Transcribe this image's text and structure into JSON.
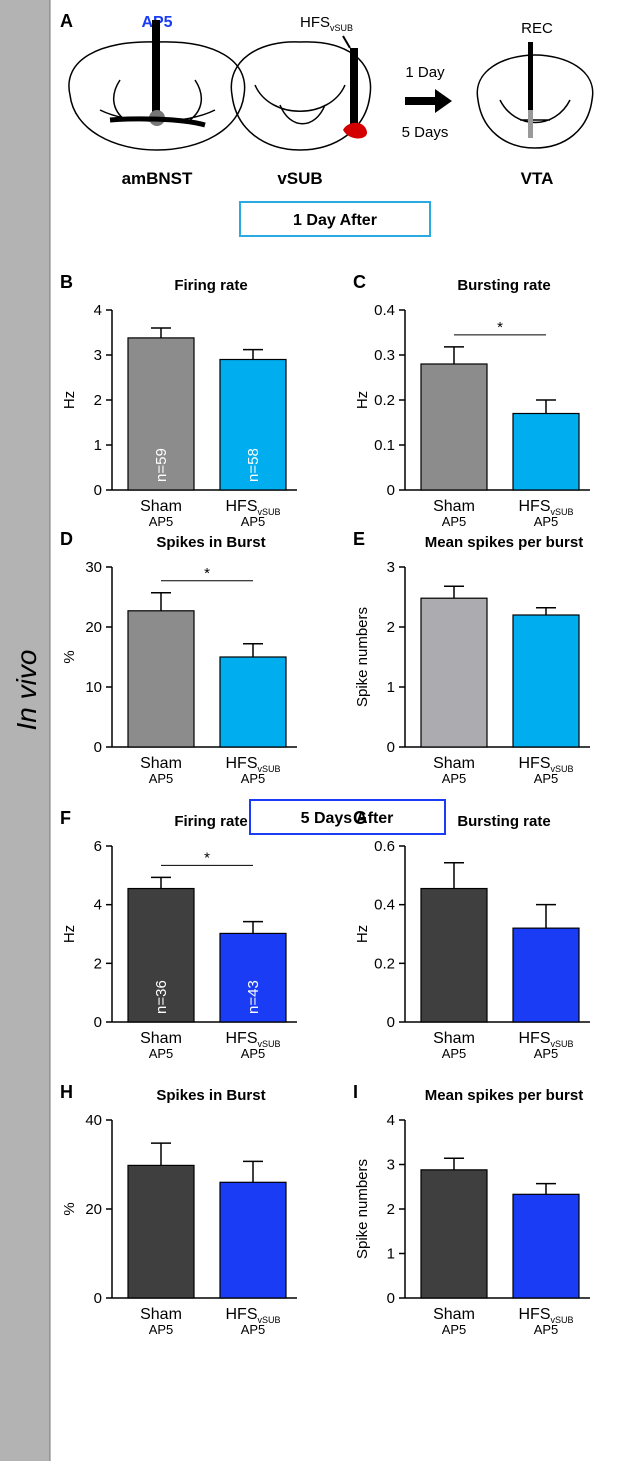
{
  "side_label": "In vivo",
  "panel_a": {
    "panel": "A",
    "drug": "AP5",
    "stim": "HFS",
    "stim_sub": "vSUB",
    "delay1": "1 Day",
    "delay2": "5 Days",
    "rec": "REC",
    "region1": "amBNST",
    "region2": "vSUB",
    "region3": "VTA"
  },
  "sections": [
    "1 Day After",
    "5 Days After"
  ],
  "chart_data": [
    {
      "type": "bar",
      "panel": "B",
      "title": "Firing rate",
      "ylabel": "Hz",
      "categories": [
        "Sham",
        "HFS"
      ],
      "category_notes": [
        "AP5",
        "AP5"
      ],
      "subscript": "vSUB",
      "values": [
        3.38,
        2.9
      ],
      "errors": [
        0.22,
        0.22
      ],
      "bar_labels": [
        "n=59",
        "n=58"
      ],
      "colors": [
        "#8c8c8c",
        "#00aeef"
      ],
      "ylim": [
        0,
        4
      ],
      "yticks": [
        0,
        1,
        2,
        3,
        4
      ]
    },
    {
      "type": "bar",
      "panel": "C",
      "title": "Bursting rate",
      "ylabel": "Hz",
      "categories": [
        "Sham",
        "HFS"
      ],
      "category_notes": [
        "AP5",
        "AP5"
      ],
      "subscript": "vSUB",
      "values": [
        0.28,
        0.17
      ],
      "errors": [
        0.038,
        0.03
      ],
      "significance": "*",
      "colors": [
        "#8c8c8c",
        "#00aeef"
      ],
      "ylim": [
        0,
        0.4
      ],
      "yticks": [
        0,
        0.1,
        0.2,
        0.3,
        0.4
      ]
    },
    {
      "type": "bar",
      "panel": "D",
      "title": "Spikes in Burst",
      "ylabel": "%",
      "categories": [
        "Sham",
        "HFS"
      ],
      "category_notes": [
        "AP5",
        "AP5"
      ],
      "subscript": "vSUB",
      "values": [
        22.7,
        15
      ],
      "errors": [
        3,
        2.2
      ],
      "significance": "*",
      "colors": [
        "#8c8c8c",
        "#00aeef"
      ],
      "ylim": [
        0,
        30
      ],
      "yticks": [
        0,
        10,
        20,
        30
      ]
    },
    {
      "type": "bar",
      "panel": "E",
      "title": "Mean spikes per burst",
      "ylabel": "Spike numbers",
      "categories": [
        "Sham",
        "HFS"
      ],
      "category_notes": [
        "AP5",
        "AP5"
      ],
      "subscript": "vSUB",
      "values": [
        2.48,
        2.2
      ],
      "errors": [
        0.2,
        0.12
      ],
      "colors": [
        "#ababb0",
        "#00aeef"
      ],
      "ylim": [
        0,
        3
      ],
      "yticks": [
        0,
        1,
        2,
        3
      ]
    },
    {
      "type": "bar",
      "panel": "F",
      "title": "Firing rate",
      "ylabel": "Hz",
      "categories": [
        "Sham",
        "HFS"
      ],
      "category_notes": [
        "AP5",
        "AP5"
      ],
      "subscript": "vSUB",
      "values": [
        4.55,
        3.02
      ],
      "errors": [
        0.38,
        0.4
      ],
      "bar_labels": [
        "n=36",
        "n=43"
      ],
      "significance": "*",
      "colors": [
        "#3f3f3f",
        "#1a3cf5"
      ],
      "ylim": [
        0,
        6
      ],
      "yticks": [
        0,
        2,
        4,
        6
      ]
    },
    {
      "type": "bar",
      "panel": "G",
      "title": "Bursting rate",
      "ylabel": "Hz",
      "categories": [
        "Sham",
        "HFS"
      ],
      "category_notes": [
        "AP5",
        "AP5"
      ],
      "subscript": "vSUB",
      "values": [
        0.455,
        0.32
      ],
      "errors": [
        0.088,
        0.08
      ],
      "colors": [
        "#3f3f3f",
        "#1a3cf5"
      ],
      "ylim": [
        0,
        0.6
      ],
      "yticks": [
        0,
        0.2,
        0.4,
        0.6
      ]
    },
    {
      "type": "bar",
      "panel": "H",
      "title": "Spikes in Burst",
      "ylabel": "%",
      "categories": [
        "Sham",
        "HFS"
      ],
      "category_notes": [
        "AP5",
        "AP5"
      ],
      "subscript": "vSUB",
      "values": [
        29.8,
        26
      ],
      "errors": [
        5,
        4.7
      ],
      "colors": [
        "#3f3f3f",
        "#1a3cf5"
      ],
      "ylim": [
        0,
        40
      ],
      "yticks": [
        0,
        20,
        40
      ]
    },
    {
      "type": "bar",
      "panel": "I",
      "title": "Mean spikes per burst",
      "ylabel": "Spike numbers",
      "categories": [
        "Sham",
        "HFS"
      ],
      "category_notes": [
        "AP5",
        "AP5"
      ],
      "subscript": "vSUB",
      "values": [
        2.88,
        2.33
      ],
      "errors": [
        0.26,
        0.24
      ],
      "colors": [
        "#3f3f3f",
        "#1a3cf5"
      ],
      "ylim": [
        0,
        4
      ],
      "yticks": [
        0,
        1,
        2,
        3,
        4
      ]
    }
  ]
}
